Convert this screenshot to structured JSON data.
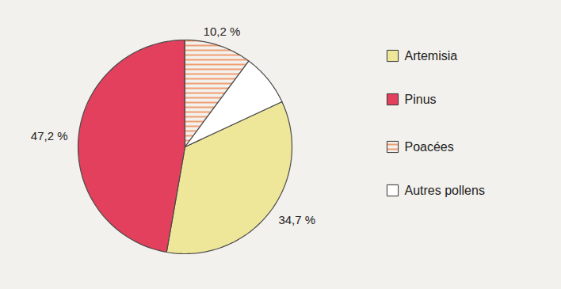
{
  "chart_data": {
    "type": "pie",
    "categories": [
      "Artemisia",
      "Pinus",
      "Poacées",
      "Autres pollens"
    ],
    "values": [
      34.7,
      47.2,
      10.2,
      7.9
    ],
    "value_labels": [
      "34,7 %",
      "47,2 %",
      "10,2 %",
      null
    ],
    "colors": [
      "#eee79a",
      "#e2405c",
      "#f6c88c",
      "#ffffff"
    ],
    "legend": "right",
    "data_labels": true
  }
}
